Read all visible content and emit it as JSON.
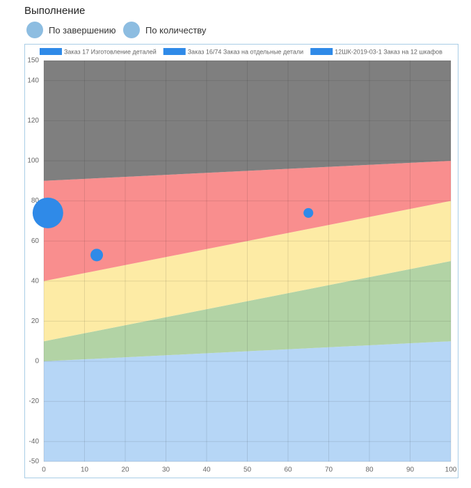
{
  "title": "Выполнение",
  "toggles": [
    "По завершению",
    "По количеству"
  ],
  "chart_data": {
    "type": "bubble",
    "band_x": [
      0,
      100
    ],
    "bands": [
      {
        "color": "#b6d6f6",
        "values": [
          0,
          10
        ]
      },
      {
        "color": "#b2d3a5",
        "values": [
          10,
          50
        ]
      },
      {
        "color": "#fdeba5",
        "values": [
          40,
          80
        ]
      },
      {
        "color": "#f98e8e",
        "values": [
          90,
          100
        ]
      },
      {
        "color": "#7f7f7f",
        "values": [
          150,
          150
        ]
      }
    ],
    "series": [
      {
        "name": "Заказ 17 Изготовление деталей",
        "color": "#2f8ae8",
        "x": [
          1
        ],
        "values": [
          74
        ],
        "sizes": [
          22
        ]
      },
      {
        "name": "Заказ 16/74 Заказ на отдельные детали",
        "color": "#2f8ae8",
        "x": [
          13
        ],
        "values": [
          53
        ],
        "sizes": [
          9
        ]
      },
      {
        "name": "12ШК-2019-03-1 Заказ на 12 шкафов",
        "color": "#2f8ae8",
        "x": [
          65
        ],
        "values": [
          74
        ],
        "sizes": [
          7
        ]
      }
    ],
    "xlim": [
      0,
      100
    ],
    "ylim": [
      -50,
      150
    ],
    "xticks": [
      0,
      10,
      20,
      30,
      40,
      50,
      60,
      70,
      80,
      90,
      100
    ],
    "yticks": [
      -50,
      -40,
      -20,
      0,
      20,
      40,
      60,
      80,
      100,
      120,
      140,
      150
    ],
    "grid": true
  }
}
